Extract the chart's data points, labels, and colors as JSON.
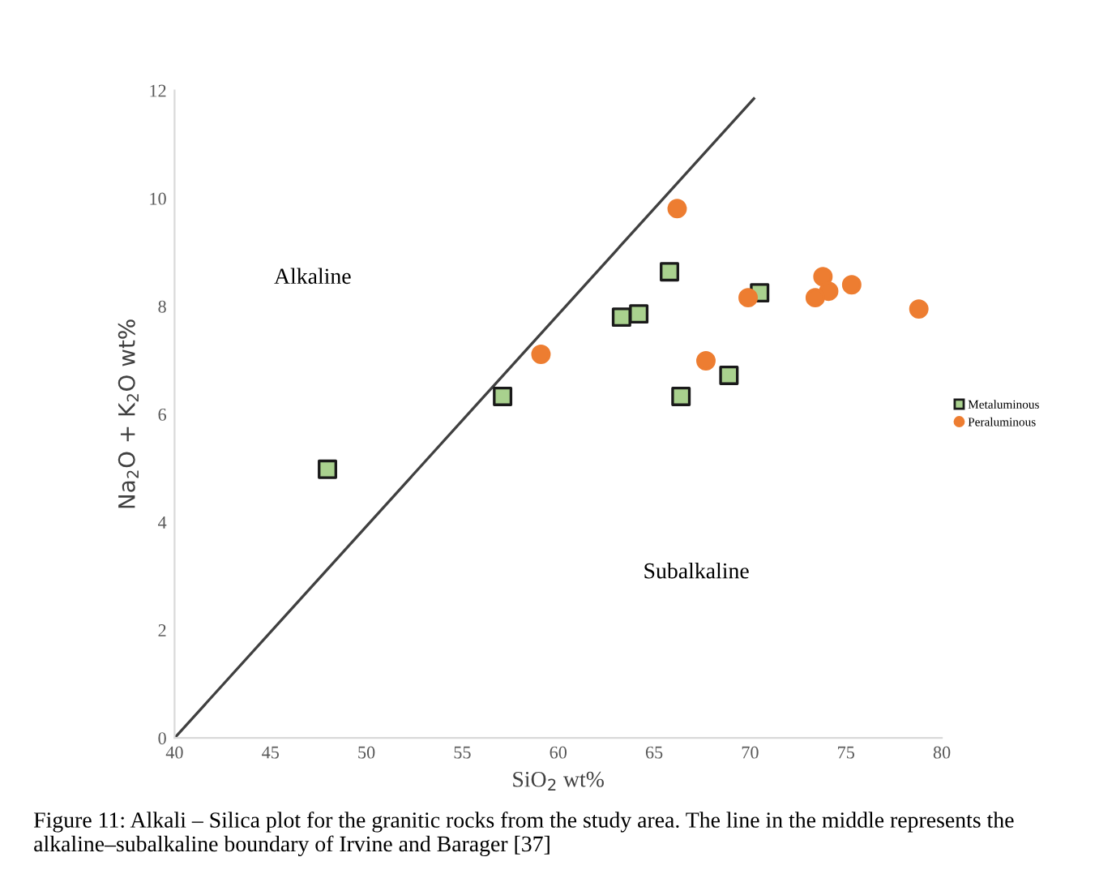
{
  "chart_data": {
    "type": "scatter",
    "xlabel": "SiO$_{2}$ wt%",
    "ylabel": "Na$_{2}$O + K$_{2}$O wt%",
    "xlim": [
      40,
      80
    ],
    "ylim": [
      0,
      12
    ],
    "xticks": [
      40,
      45,
      50,
      55,
      60,
      65,
      70,
      75,
      80
    ],
    "yticks": [
      0,
      2,
      4,
      6,
      8,
      10,
      12
    ],
    "grid": false,
    "legend": "right",
    "series": [
      {
        "name": "Metaluminous",
        "marker": "square",
        "color": "#a9d18e",
        "x": [
          47.97,
          57.1,
          63.3,
          64.2,
          65.8,
          66.4,
          68.9,
          70.5
        ],
        "values": [
          4.98,
          6.33,
          7.8,
          7.86,
          8.64,
          6.33,
          6.72,
          8.25
        ]
      },
      {
        "name": "Peraluminous",
        "marker": "circle",
        "color": "#ed7d31",
        "x": [
          59.1,
          66.2,
          67.7,
          69.9,
          73.8,
          74.1,
          73.4,
          75.3,
          78.8
        ],
        "values": [
          7.11,
          9.81,
          6.99,
          8.16,
          8.55,
          8.28,
          8.16,
          8.4,
          7.95
        ]
      },
      {
        "type": "line",
        "marker": "none",
        "color": "#404040",
        "x": [
          40,
          70.2
        ],
        "values": [
          0,
          11.85
        ]
      }
    ],
    "annotations": [
      "Alkaline",
      "Subalkaline",
      "Figure 11: Alkali – Silica plot for the granitic rocks from the study area. The line in the middle represents the alkaline–subalkaline boundary of Irvine and Barager [37]"
    ]
  }
}
